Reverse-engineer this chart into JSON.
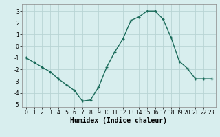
{
  "x": [
    0,
    1,
    2,
    3,
    4,
    5,
    6,
    7,
    8,
    9,
    10,
    11,
    12,
    13,
    14,
    15,
    16,
    17,
    18,
    19,
    20,
    21,
    22,
    23
  ],
  "y": [
    -1.0,
    -1.4,
    -1.8,
    -2.2,
    -2.8,
    -3.3,
    -3.8,
    -4.7,
    -4.6,
    -3.5,
    -1.8,
    -0.5,
    0.6,
    2.2,
    2.5,
    3.0,
    3.0,
    2.3,
    0.7,
    -1.3,
    -1.9,
    -2.8,
    -2.8,
    -2.8
  ],
  "line_color": "#1a6b5a",
  "marker": "+",
  "marker_size": 3,
  "xlabel": "Humidex (Indice chaleur)",
  "xlim": [
    -0.5,
    23.5
  ],
  "ylim": [
    -5.2,
    3.6
  ],
  "yticks": [
    -5,
    -4,
    -3,
    -2,
    -1,
    0,
    1,
    2,
    3
  ],
  "xticks": [
    0,
    1,
    2,
    3,
    4,
    5,
    6,
    7,
    8,
    9,
    10,
    11,
    12,
    13,
    14,
    15,
    16,
    17,
    18,
    19,
    20,
    21,
    22,
    23
  ],
  "grid_color": "#b8d4d4",
  "background_color": "#d8eeee",
  "tick_fontsize": 5.5,
  "xlabel_fontsize": 7,
  "line_width": 1.0
}
